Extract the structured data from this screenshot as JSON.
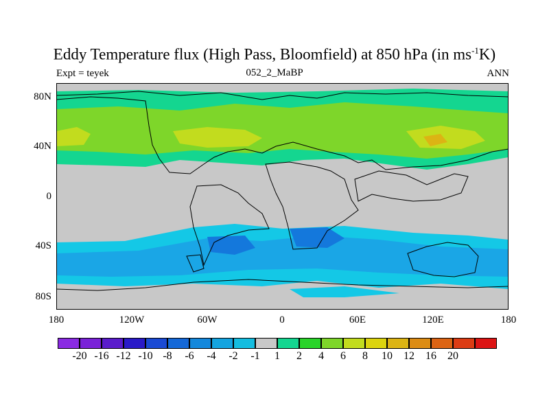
{
  "title": {
    "prefix": "Eddy Temperature flux (High Pass, Bloomfield) at 850 hPa (in ms",
    "sup": "-1",
    "suffix": "K)"
  },
  "subtitle_left": "Expt = teyek",
  "subtitle_center": "052_2_MaBP",
  "subtitle_right": "ANN",
  "y_axis": {
    "labels": [
      "80N",
      "40N",
      "0",
      "40S",
      "80S"
    ],
    "values": [
      80,
      40,
      0,
      -40,
      -80
    ]
  },
  "x_axis": {
    "labels": [
      "180",
      "120W",
      "60W",
      "0",
      "60E",
      "120E",
      "180"
    ],
    "values": [
      -180,
      -120,
      -60,
      0,
      60,
      120,
      180
    ]
  },
  "colorbar": {
    "colors": [
      "#8a2be2",
      "#7a22d8",
      "#5a1ccc",
      "#2a1ac8",
      "#1a4ad4",
      "#1468d8",
      "#1488dc",
      "#14a4e0",
      "#14bde0",
      "#c8c8c8",
      "#14d690",
      "#2ad42a",
      "#7ed62a",
      "#c2dc1e",
      "#dcd40e",
      "#dcb414",
      "#dc8c14",
      "#dc6414",
      "#dc3c14",
      "#dc1414"
    ],
    "labels": [
      "-20",
      "-16",
      "-12",
      "-10",
      "-8",
      "-6",
      "-4",
      "-2",
      "-1",
      "1",
      "2",
      "4",
      "6",
      "8",
      "10",
      "12",
      "16",
      "20"
    ]
  },
  "field_colors": {
    "land_neutral": "#c8c8c8",
    "cyan": "#14c8e6",
    "blue": "#1aa6e6",
    "dark_blue": "#1478dc",
    "green": "#14d690",
    "lime": "#7ed62a",
    "yellow_green": "#c2dc1e",
    "orange": "#dcb414"
  }
}
